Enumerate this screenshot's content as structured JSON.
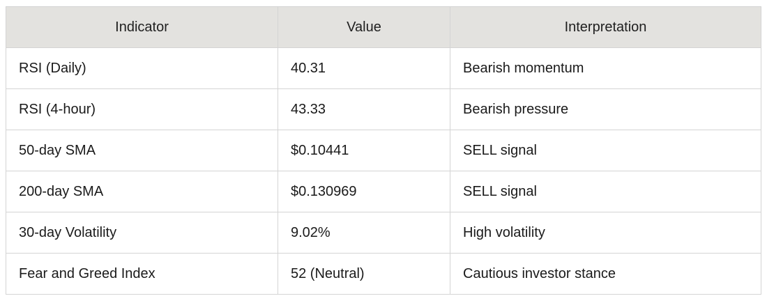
{
  "table": {
    "headers": [
      "Indicator",
      "Value",
      "Interpretation"
    ],
    "rows": [
      [
        "RSI (Daily)",
        "40.31",
        "Bearish momentum"
      ],
      [
        "RSI (4-hour)",
        "43.33",
        "Bearish pressure"
      ],
      [
        "50-day SMA",
        "$0.10441",
        "SELL signal"
      ],
      [
        "200-day SMA",
        "$0.130969",
        "SELL signal"
      ],
      [
        "30-day Volatility",
        "9.02%",
        "High volatility"
      ],
      [
        "Fear and Greed Index",
        "52 (Neutral)",
        "Cautious investor stance"
      ]
    ]
  }
}
